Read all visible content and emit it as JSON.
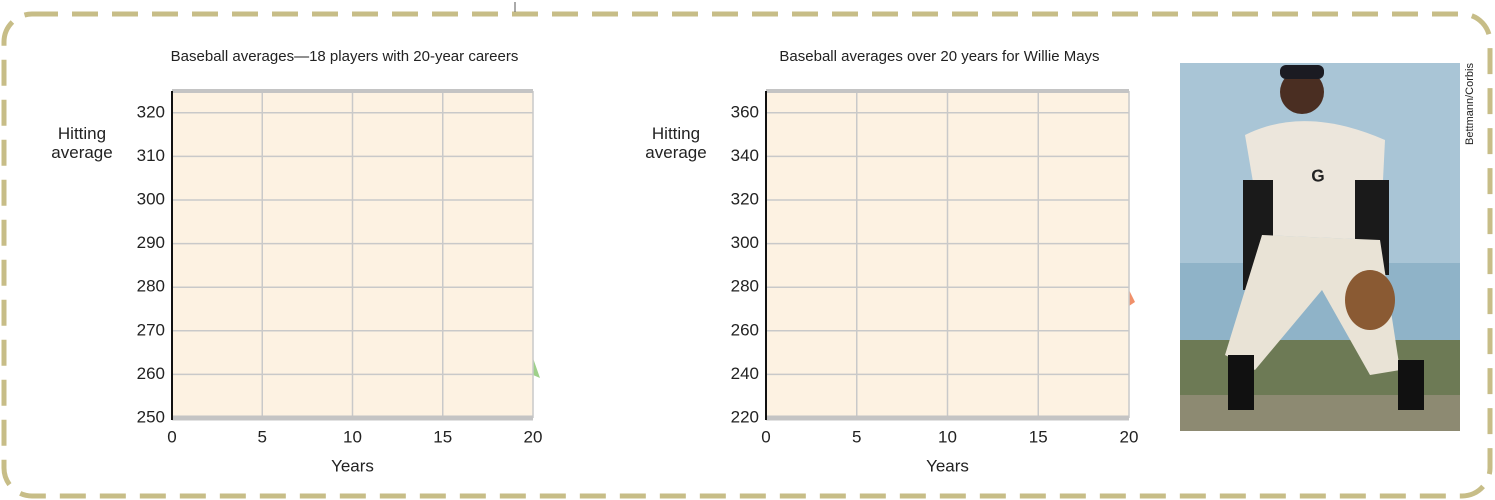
{
  "chart_data": [
    {
      "type": "line",
      "title": "Baseball averages—18 players with 20-year careers",
      "ylabel": "Hitting average",
      "xlabel": "Years",
      "xlim": [
        0,
        20
      ],
      "xticks": [
        0,
        5,
        10,
        15,
        20
      ],
      "ylim": [
        250,
        325
      ],
      "yticks": [
        250,
        260,
        270,
        280,
        290,
        300,
        310,
        320
      ],
      "grid": true
    },
    {
      "type": "line",
      "title": "Baseball averages over 20 years for Willie Mays",
      "ylabel": "Hitting average",
      "xlabel": "Years",
      "xlim": [
        0,
        20
      ],
      "xticks": [
        0,
        5,
        10,
        15,
        20
      ],
      "ylim": [
        220,
        370
      ],
      "yticks": [
        220,
        240,
        260,
        280,
        300,
        320,
        340,
        360
      ],
      "grid": true
    }
  ],
  "credit": "Bettmann/Corbis"
}
